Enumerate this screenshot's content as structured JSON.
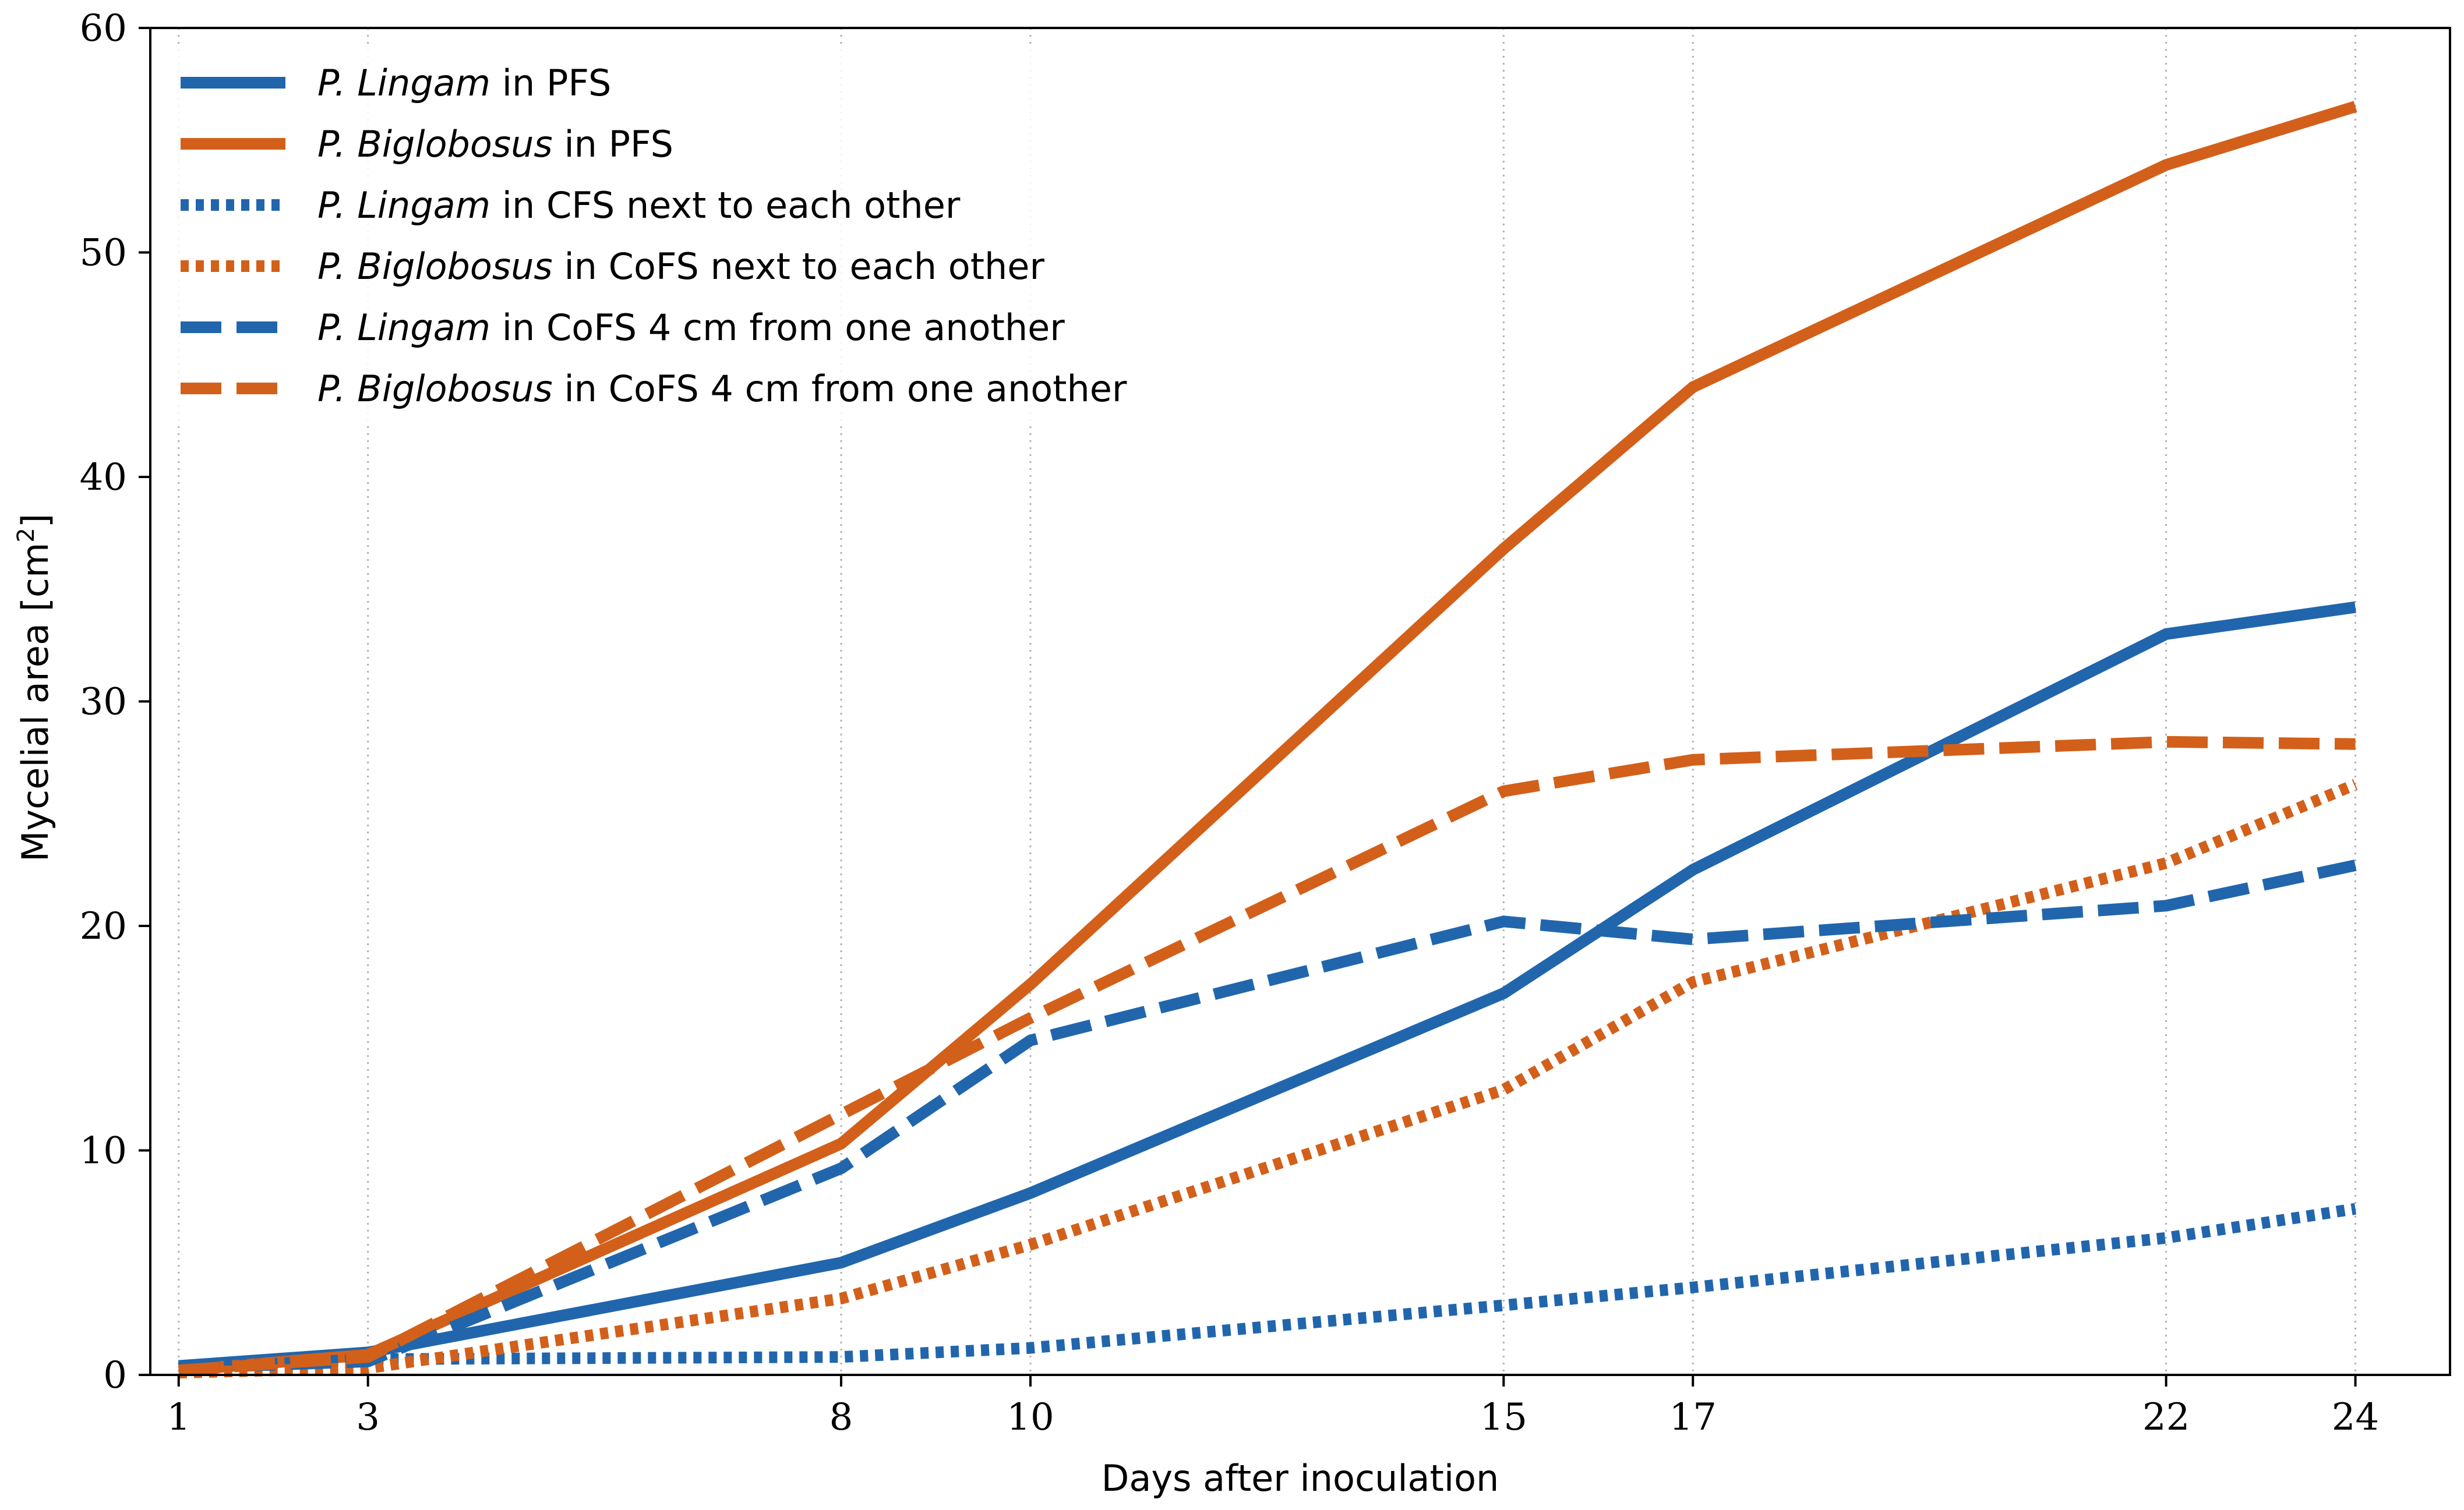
{
  "chart_data": {
    "type": "line",
    "title": "",
    "xlabel": "Days after inoculation",
    "ylabel": {
      "prefix": "Mycelial area [cm",
      "superscript": "2",
      "suffix": "]"
    },
    "x": [
      1,
      3,
      8,
      10,
      15,
      17,
      22,
      24
    ],
    "xticks": [
      "1",
      "3",
      "8",
      "10",
      "15",
      "17",
      "22",
      "24"
    ],
    "xlim": [
      0.7,
      25.0
    ],
    "ylim": [
      0,
      60
    ],
    "yticks": [
      "0",
      "10",
      "20",
      "30",
      "40",
      "50",
      "60"
    ],
    "grid": "vertical dotted at x ticks",
    "legend_position": "top-left",
    "colors": {
      "blue": "#2166ac",
      "orange": "#d2601a"
    },
    "series": [
      {
        "species": "P. Lingam",
        "condition": "in PFS",
        "color": "#2166ac",
        "style": "solid",
        "values": [
          0.4,
          1.0,
          5.0,
          8.1,
          17.0,
          22.5,
          33.0,
          34.2
        ]
      },
      {
        "species": "P. Biglobosus",
        "condition": "in PFS",
        "color": "#d2601a",
        "style": "solid",
        "values": [
          0.2,
          0.9,
          10.3,
          17.4,
          36.8,
          44.0,
          53.9,
          56.5
        ]
      },
      {
        "species": "P. Lingam",
        "condition": "in CFS next to each other",
        "color": "#2166ac",
        "style": "dotted",
        "values": [
          0.3,
          0.7,
          0.8,
          1.2,
          3.1,
          3.9,
          6.1,
          7.4
        ]
      },
      {
        "species": "P. Biglobosus",
        "condition": "in CoFS next to each other",
        "color": "#d2601a",
        "style": "dotted",
        "values": [
          0.1,
          0.3,
          3.4,
          5.8,
          12.7,
          17.5,
          22.8,
          26.3
        ]
      },
      {
        "species": "P. Lingam",
        "condition": "in CoFS 4 cm from one another",
        "color": "#2166ac",
        "style": "dashed",
        "values": [
          0.3,
          0.6,
          9.2,
          14.9,
          20.2,
          19.4,
          20.9,
          22.7
        ]
      },
      {
        "species": "P. Biglobosus",
        "condition": "in CoFS 4 cm from one another",
        "color": "#d2601a",
        "style": "dashed",
        "values": [
          0.2,
          0.8,
          11.6,
          15.9,
          26.0,
          27.4,
          28.2,
          28.1
        ]
      }
    ]
  }
}
